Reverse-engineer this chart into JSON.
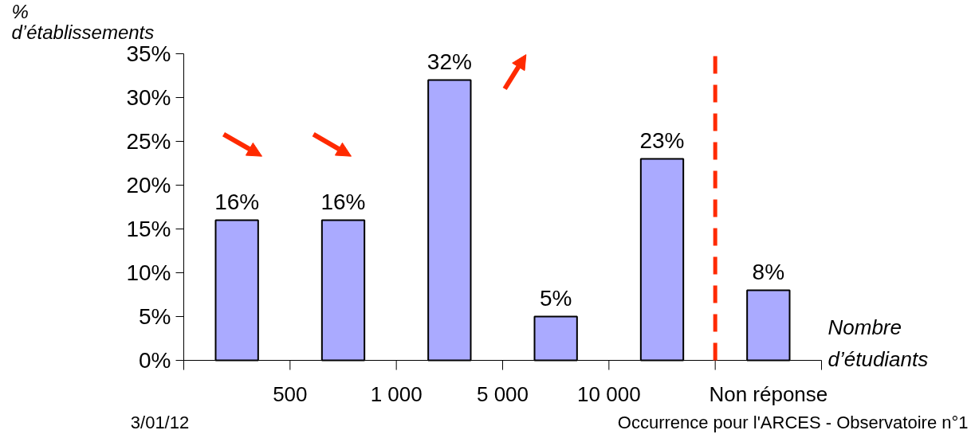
{
  "chart_data": {
    "type": "bar",
    "categories": [
      null,
      null,
      null,
      null,
      null,
      "Non réponse"
    ],
    "values": [
      16,
      16,
      32,
      5,
      23,
      8
    ],
    "value_labels": [
      "16%",
      "16%",
      "32%",
      "5%",
      "23%",
      "8%"
    ],
    "color": "#aaaaff",
    "ylim": [
      0,
      35
    ],
    "yticks": [
      {
        "value": 0,
        "label": "0%"
      },
      {
        "value": 5,
        "label": "5%"
      },
      {
        "value": 10,
        "label": "10%"
      },
      {
        "value": 15,
        "label": "15%"
      },
      {
        "value": 20,
        "label": "20%"
      },
      {
        "value": 25,
        "label": "25%"
      },
      {
        "value": 30,
        "label": "30%"
      },
      {
        "value": 35,
        "label": "35%"
      }
    ],
    "ylabel": "% d’établissements",
    "xlabel": "Nombre d’étudiants",
    "grid": false,
    "annotations": [
      "500",
      "1 000",
      "5 000",
      "10 000",
      "3/01/12",
      "Occurrence pour l'ARCES - Observatoire n°1"
    ]
  }
}
